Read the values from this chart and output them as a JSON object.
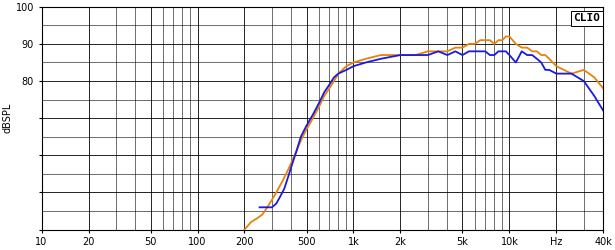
{
  "title": "CLIO",
  "ylabel": "dBSPL",
  "xlabel_ticks": [
    "10",
    "20",
    "50",
    "100",
    "200",
    "500",
    "1k",
    "2k",
    "5k",
    "10k",
    "Hz",
    "40k"
  ],
  "xlabel_vals": [
    10,
    20,
    50,
    100,
    200,
    500,
    1000,
    2000,
    5000,
    10000,
    20000,
    40000
  ],
  "xlim": [
    10,
    40000
  ],
  "ylim": [
    40,
    100
  ],
  "yticks": [
    40,
    50,
    60,
    70,
    80,
    90,
    100
  ],
  "ytick_labels": [
    "",
    "",
    "",
    "",
    "80",
    "90",
    "100"
  ],
  "background_color": "#ffffff",
  "grid_color": "#000000",
  "line_color_orange": "#E8820A",
  "line_color_blue": "#1A1AE0",
  "orange_curve": {
    "freq": [
      200,
      210,
      220,
      240,
      260,
      280,
      300,
      320,
      350,
      380,
      420,
      460,
      500,
      550,
      600,
      650,
      700,
      750,
      800,
      900,
      1000,
      1200,
      1500,
      2000,
      2500,
      3000,
      3500,
      4000,
      4500,
      5000,
      5500,
      6000,
      6500,
      7000,
      7500,
      8000,
      8500,
      9000,
      9500,
      10000,
      11000,
      12000,
      13000,
      14000,
      15000,
      16000,
      17000,
      18000,
      20000,
      25000,
      30000,
      35000,
      40000
    ],
    "spl": [
      40,
      41,
      42,
      43,
      44,
      46,
      48,
      50,
      53,
      56,
      60,
      64,
      67,
      70,
      73,
      76,
      78,
      80,
      82,
      84,
      85,
      86,
      87,
      87,
      87,
      88,
      88,
      88,
      89,
      89,
      90,
      90,
      91,
      91,
      91,
      90,
      91,
      91,
      92,
      92,
      90,
      89,
      89,
      88,
      88,
      87,
      87,
      86,
      84,
      82,
      83,
      81,
      78
    ]
  },
  "blue_curve": {
    "freq": [
      250,
      260,
      270,
      280,
      290,
      300,
      320,
      340,
      360,
      380,
      400,
      430,
      460,
      500,
      550,
      600,
      650,
      700,
      750,
      800,
      900,
      1000,
      1200,
      1500,
      2000,
      2500,
      3000,
      3500,
      4000,
      4500,
      5000,
      5500,
      6000,
      6500,
      7000,
      7500,
      8000,
      8500,
      9000,
      9500,
      10000,
      11000,
      12000,
      13000,
      14000,
      15000,
      16000,
      17000,
      18000,
      20000,
      25000,
      30000,
      35000,
      40000
    ],
    "spl": [
      46,
      46,
      46,
      46,
      46,
      46,
      47,
      49,
      51,
      54,
      57,
      61,
      65,
      68,
      71,
      74,
      77,
      79,
      81,
      82,
      83,
      84,
      85,
      86,
      87,
      87,
      87,
      88,
      87,
      88,
      87,
      88,
      88,
      88,
      88,
      87,
      87,
      88,
      88,
      88,
      87,
      85,
      88,
      87,
      87,
      86,
      85,
      83,
      83,
      82,
      82,
      80,
      76,
      72
    ]
  }
}
